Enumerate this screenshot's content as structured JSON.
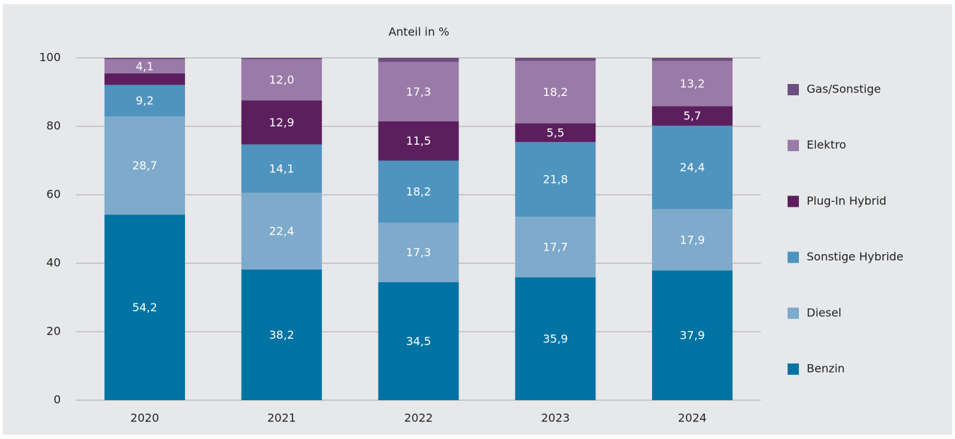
{
  "chart_data": {
    "type": "stacked_bar",
    "title": "Anteil in %",
    "categories": [
      "2020",
      "2021",
      "2022",
      "2023",
      "2024"
    ],
    "series": [
      {
        "name": "Benzin",
        "color": "#0073a3",
        "values": [
          54.2,
          38.2,
          34.5,
          35.9,
          37.9
        ],
        "value_labels": [
          "54,2",
          "38,2",
          "34,5",
          "35,9",
          "37,9"
        ]
      },
      {
        "name": "Diesel",
        "color": "#7eaacb",
        "values": [
          28.7,
          22.4,
          17.3,
          17.7,
          17.9
        ],
        "value_labels": [
          "28,7",
          "22,4",
          "17,3",
          "17,7",
          "17,9"
        ]
      },
      {
        "name": "Sonstige Hybride",
        "color": "#4f93bf",
        "values": [
          9.2,
          14.1,
          18.2,
          21.8,
          24.4
        ],
        "value_labels": [
          "9,2",
          "14,1",
          "18,2",
          "21,8",
          "24,4"
        ]
      },
      {
        "name": "Plug-In Hybrid",
        "color": "#5c1f5e",
        "values": [
          3.4,
          12.9,
          11.5,
          5.5,
          5.7
        ],
        "value_labels": [
          null,
          "12,9",
          "11,5",
          "5,5",
          "5,7"
        ]
      },
      {
        "name": "Elektro",
        "color": "#9a7aa8",
        "values": [
          4.1,
          12.0,
          17.3,
          18.2,
          13.2
        ],
        "value_labels": [
          "4,1",
          "12,0",
          "17,3",
          "18,2",
          "13,2"
        ]
      },
      {
        "name": "Gas/Sonstige",
        "color": "#6b4f80",
        "values": [
          0.4,
          0.4,
          1.2,
          0.9,
          0.9
        ]
      }
    ],
    "ylim": [
      0,
      100
    ],
    "yticks": [
      0,
      20,
      40,
      60,
      80,
      100
    ],
    "grid": true,
    "legend": "right"
  }
}
